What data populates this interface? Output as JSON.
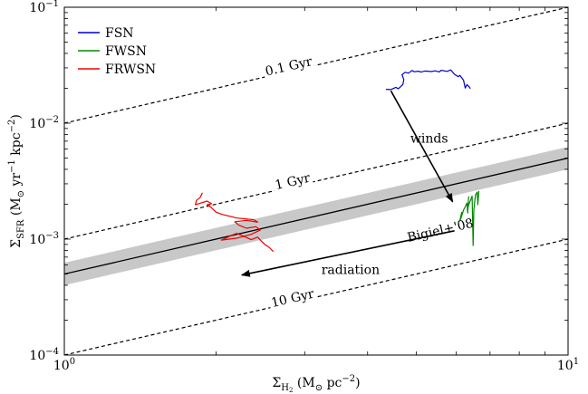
{
  "chart_data": {
    "type": "line",
    "title": "",
    "x_scale": "log",
    "y_scale": "log",
    "xlim": [
      1,
      10
    ],
    "ylim": [
      0.0001,
      0.1
    ],
    "grid": false,
    "legend_position": "top-left",
    "xlabel": {
      "main": "Σ",
      "sub": "H",
      "subsub": "2",
      "unit": " (M",
      "unit_sub": "⊙",
      "unit_rest": " pc",
      "unit_sup": "−2",
      "close": ")"
    },
    "ylabel": {
      "main": "Σ",
      "sub": "SFR",
      "unit": " (M",
      "unit_sub": "⊙",
      "unit_mid": " yr",
      "unit_sup1": "−1",
      "unit_mid2": " kpc",
      "unit_sup2": "−2",
      "close": ")"
    },
    "x_ticks": [
      {
        "value": 1,
        "base": "10",
        "exp": "0"
      },
      {
        "value": 10,
        "base": "10",
        "exp": "1"
      }
    ],
    "y_ticks": [
      {
        "value": 0.1,
        "base": "10",
        "exp": "−1"
      },
      {
        "value": 0.01,
        "base": "10",
        "exp": "−2"
      },
      {
        "value": 0.001,
        "base": "10",
        "exp": "−3"
      },
      {
        "value": 0.0001,
        "base": "10",
        "exp": "−4"
      }
    ],
    "depletion_lines": [
      {
        "label": "0.1 Gyr",
        "x": [
          1,
          10
        ],
        "y": [
          0.01,
          0.1
        ],
        "label_x": 2.8,
        "label_y": 0.0285
      },
      {
        "label": "1 Gyr",
        "x": [
          1,
          10
        ],
        "y": [
          0.001,
          0.01
        ],
        "label_x": 2.85,
        "label_y": 0.0029
      },
      {
        "label": "10 Gyr",
        "x": [
          1,
          10
        ],
        "y": [
          0.0001,
          0.001
        ],
        "label_x": 2.85,
        "label_y": 0.000285
      }
    ],
    "relation": {
      "label": "Bigiel+'08",
      "x": [
        1,
        10
      ],
      "y": [
        0.0005,
        0.005
      ],
      "band_low_factor": 0.8,
      "band_high_factor": 1.25,
      "label_x": 5.6,
      "label_y": 0.0011
    },
    "series": [
      {
        "name": "FSN",
        "color": "#0000cc",
        "x": [
          4.35,
          4.45,
          4.55,
          4.6,
          4.65,
          4.7,
          4.72,
          4.68,
          4.75,
          4.82,
          4.9,
          4.95,
          5.05,
          5.1,
          5.2,
          5.35,
          5.45,
          5.55,
          5.6,
          5.75,
          5.85,
          5.95,
          6.05,
          6.1,
          6.2,
          6.25,
          6.3,
          6.35,
          6.4
        ],
        "y": [
          0.0196,
          0.0195,
          0.0204,
          0.0198,
          0.0206,
          0.0216,
          0.0238,
          0.0262,
          0.0275,
          0.027,
          0.0285,
          0.0278,
          0.0281,
          0.0276,
          0.0282,
          0.0279,
          0.0283,
          0.0277,
          0.0286,
          0.028,
          0.0288,
          0.0264,
          0.0252,
          0.0258,
          0.0235,
          0.0201,
          0.0215,
          0.0208,
          0.0199
        ]
      },
      {
        "name": "FWSN",
        "color": "#008800",
        "x": [
          6.05,
          6.1,
          6.15,
          6.12,
          6.2,
          6.25,
          6.3,
          6.32,
          6.35,
          6.33,
          6.4,
          6.45,
          6.48,
          6.5,
          6.55,
          6.6,
          6.62,
          6.65
        ],
        "y": [
          0.00141,
          0.00145,
          0.0017,
          0.00148,
          0.00178,
          0.0019,
          0.00205,
          0.00168,
          0.00232,
          0.0019,
          0.00215,
          0.00235,
          0.00088,
          0.00178,
          0.0024,
          0.00255,
          0.00198,
          0.0026
        ]
      },
      {
        "name": "FRWSN",
        "color": "#ee0000",
        "x": [
          2.6,
          2.55,
          2.5,
          2.45,
          2.42,
          2.35,
          2.28,
          2.2,
          2.15,
          2.1,
          2.05,
          2.2,
          2.35,
          2.45,
          2.4,
          2.3,
          2.22,
          2.18,
          2.3,
          2.42,
          2.38,
          2.2,
          2.06,
          2.0,
          1.95,
          1.92,
          1.96,
          1.92,
          1.86,
          1.82,
          1.83,
          1.86,
          1.88
        ],
        "y": [
          0.00078,
          0.00085,
          0.0009,
          0.00098,
          0.00104,
          0.00099,
          0.00105,
          0.00112,
          0.00108,
          0.00103,
          0.00098,
          0.00102,
          0.0011,
          0.0012,
          0.00128,
          0.00124,
          0.00132,
          0.00141,
          0.00145,
          0.0014,
          0.00147,
          0.00152,
          0.00163,
          0.00171,
          0.0019,
          0.00198,
          0.00202,
          0.00213,
          0.00204,
          0.00198,
          0.00216,
          0.00228,
          0.00251
        ]
      }
    ],
    "arrows": [
      {
        "label": "winds",
        "from": [
          4.45,
          0.019
        ],
        "to": [
          5.9,
          0.0021
        ],
        "label_x": 5.3,
        "label_y": 0.0068
      },
      {
        "label": "radiation",
        "from": [
          5.95,
          0.00118
        ],
        "to": [
          2.25,
          0.00049
        ],
        "label_x": 3.7,
        "label_y": 0.0005
      }
    ]
  }
}
